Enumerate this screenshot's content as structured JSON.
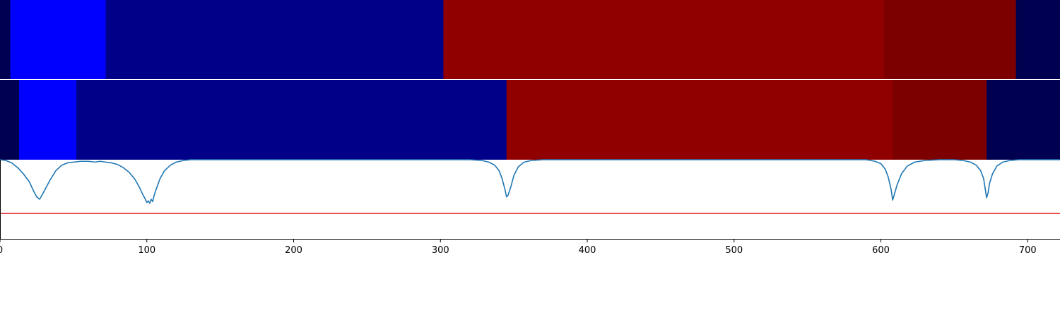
{
  "chart_data": [
    {
      "type": "heatmap",
      "title": "",
      "xlim": [
        0,
        722
      ],
      "segments": [
        {
          "start": 0,
          "end": 7,
          "color": "#000050"
        },
        {
          "start": 7,
          "end": 72,
          "color": "#0000ff"
        },
        {
          "start": 72,
          "end": 302,
          "color": "#000088"
        },
        {
          "start": 302,
          "end": 602,
          "color": "#910000"
        },
        {
          "start": 602,
          "end": 692,
          "color": "#7d0000"
        },
        {
          "start": 692,
          "end": 722,
          "color": "#000050"
        }
      ]
    },
    {
      "type": "heatmap",
      "title": "",
      "xlim": [
        0,
        722
      ],
      "segments": [
        {
          "start": 0,
          "end": 13,
          "color": "#000050"
        },
        {
          "start": 13,
          "end": 52,
          "color": "#0000ff"
        },
        {
          "start": 52,
          "end": 345,
          "color": "#000088"
        },
        {
          "start": 345,
          "end": 608,
          "color": "#910000"
        },
        {
          "start": 608,
          "end": 672,
          "color": "#7d0000"
        },
        {
          "start": 672,
          "end": 722,
          "color": "#000050"
        }
      ]
    },
    {
      "type": "line",
      "title": "",
      "xlabel": "",
      "ylabel": "",
      "xlim": [
        0,
        722
      ],
      "ylim": [
        0,
        1
      ],
      "x_ticks": [
        0,
        100,
        200,
        300,
        400,
        500,
        600,
        700
      ],
      "threshold": 0.32,
      "threshold_color": "#e41a1c",
      "line_color": "#1f77b4",
      "series": [
        {
          "x": [
            0,
            4,
            8,
            12,
            16,
            20,
            23,
            25,
            27,
            30,
            34,
            38,
            42,
            46,
            50,
            55,
            60,
            65,
            68,
            72,
            76,
            80,
            84,
            88,
            92,
            95,
            97,
            99,
            100,
            101,
            102,
            103,
            104,
            105,
            107,
            109,
            112,
            116,
            120,
            125,
            130,
            140,
            160,
            200,
            250,
            300,
            320,
            328,
            333,
            337,
            340,
            342,
            344,
            345,
            346,
            348,
            350,
            353,
            357,
            362,
            370,
            400,
            500,
            580,
            590,
            596,
            600,
            603,
            605,
            607,
            608,
            609,
            611,
            614,
            618,
            623,
            630,
            640,
            650,
            656,
            661,
            665,
            668,
            670,
            671,
            672,
            673,
            674,
            676,
            679,
            683,
            688,
            694,
            700,
            710,
            722
          ],
          "y": [
            1.0,
            0.99,
            0.96,
            0.9,
            0.82,
            0.72,
            0.6,
            0.53,
            0.5,
            0.6,
            0.74,
            0.86,
            0.93,
            0.96,
            0.97,
            0.98,
            0.98,
            0.97,
            0.98,
            0.97,
            0.96,
            0.94,
            0.9,
            0.84,
            0.75,
            0.65,
            0.57,
            0.5,
            0.46,
            0.48,
            0.45,
            0.5,
            0.47,
            0.55,
            0.66,
            0.76,
            0.86,
            0.93,
            0.97,
            0.99,
            1.0,
            1.0,
            1.0,
            1.0,
            1.0,
            1.0,
            1.0,
            0.99,
            0.97,
            0.93,
            0.86,
            0.76,
            0.62,
            0.53,
            0.55,
            0.66,
            0.8,
            0.91,
            0.97,
            0.99,
            1.0,
            1.0,
            1.0,
            1.0,
            1.0,
            0.98,
            0.95,
            0.88,
            0.78,
            0.62,
            0.49,
            0.55,
            0.68,
            0.82,
            0.92,
            0.97,
            0.99,
            1.0,
            1.0,
            0.99,
            0.97,
            0.93,
            0.86,
            0.76,
            0.64,
            0.52,
            0.58,
            0.7,
            0.82,
            0.92,
            0.97,
            0.99,
            1.0,
            1.0,
            1.0,
            1.0
          ]
        }
      ]
    }
  ]
}
